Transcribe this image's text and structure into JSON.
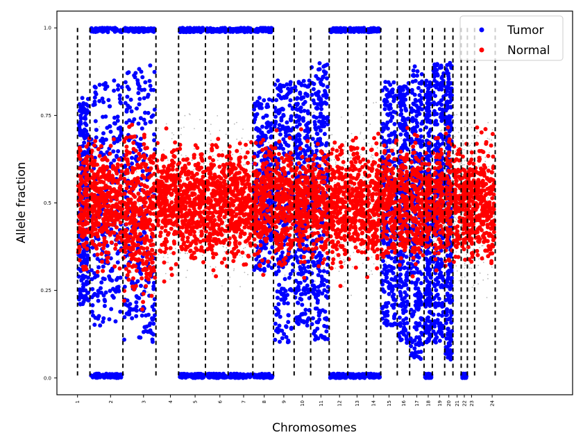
{
  "chart_data": {
    "type": "scatter",
    "title": "",
    "xlabel": "Chromosomes",
    "ylabel": "Allele fraction",
    "xlim": [
      0,
      25
    ],
    "ylim": [
      -0.048,
      1.048
    ],
    "grid": false,
    "legend_position": "top-right",
    "yticks": [
      {
        "value": 0.0,
        "label": "0.0"
      },
      {
        "value": 0.25,
        "label": "0.25"
      },
      {
        "value": 0.5,
        "label": "0.5"
      },
      {
        "value": 0.75,
        "label": "0.75"
      },
      {
        "value": 1.0,
        "label": "1.0"
      }
    ],
    "xticks": [
      {
        "value": 1.0,
        "label": "1"
      },
      {
        "value": 2.6,
        "label": "2"
      },
      {
        "value": 4.2,
        "label": "3"
      },
      {
        "value": 5.5,
        "label": "4"
      },
      {
        "value": 6.7,
        "label": "5"
      },
      {
        "value": 7.9,
        "label": "6"
      },
      {
        "value": 9.05,
        "label": "7"
      },
      {
        "value": 10.05,
        "label": "8"
      },
      {
        "value": 11.0,
        "label": "9"
      },
      {
        "value": 11.9,
        "label": "10"
      },
      {
        "value": 12.8,
        "label": "11"
      },
      {
        "value": 13.7,
        "label": "12"
      },
      {
        "value": 14.55,
        "label": "13"
      },
      {
        "value": 15.35,
        "label": "14"
      },
      {
        "value": 16.1,
        "label": "15"
      },
      {
        "value": 16.8,
        "label": "16"
      },
      {
        "value": 17.45,
        "label": "17"
      },
      {
        "value": 18.0,
        "label": "18"
      },
      {
        "value": 18.55,
        "label": "19"
      },
      {
        "value": 19.0,
        "label": "20"
      },
      {
        "value": 19.4,
        "label": "21"
      },
      {
        "value": 19.75,
        "label": "22"
      },
      {
        "value": 20.1,
        "label": "23"
      },
      {
        "value": 21.1,
        "label": "24"
      }
    ],
    "boundaries": [
      1.0,
      1.6,
      3.2,
      4.8,
      5.9,
      7.2,
      8.3,
      9.5,
      10.5,
      11.5,
      12.3,
      13.2,
      14.1,
      15.0,
      15.7,
      16.5,
      17.1,
      17.8,
      18.2,
      18.8,
      19.2,
      19.6,
      19.9,
      20.25,
      21.25
    ],
    "series": [
      {
        "name": "Tumor",
        "color": "#0000ff"
      },
      {
        "name": "Normal",
        "color": "#ff0000"
      }
    ],
    "background_color": "#999999",
    "regions": [
      {
        "chromosome": "1",
        "x": [
          1.0,
          1.6
        ],
        "tumor_bands": [
          [
            0.2,
            0.8
          ]
        ],
        "normal_range": [
          0.28,
          0.72
        ]
      },
      {
        "chromosome": "2",
        "x": [
          1.6,
          3.2
        ],
        "tumor_bands": [
          [
            0.0,
            0.0
          ],
          [
            1.0,
            1.0
          ],
          [
            0.15,
            0.85
          ]
        ],
        "normal_range": [
          0.3,
          0.7
        ]
      },
      {
        "chromosome": "3",
        "x": [
          3.2,
          4.8
        ],
        "tumor_bands": [
          [
            0.1,
            0.9
          ],
          [
            1.0,
            1.0
          ]
        ],
        "normal_range": [
          0.2,
          0.75
        ]
      },
      {
        "chromosome": "4",
        "x": [
          4.8,
          5.9
        ],
        "tumor_bands": [],
        "normal_range": [
          0.3,
          0.7
        ]
      },
      {
        "chromosome": "5",
        "x": [
          5.9,
          7.2
        ],
        "tumor_bands": [
          [
            0.0,
            0.0
          ],
          [
            1.0,
            1.0
          ]
        ],
        "normal_range": [
          0.3,
          0.7
        ]
      },
      {
        "chromosome": "6",
        "x": [
          7.2,
          8.3
        ],
        "tumor_bands": [
          [
            0.0,
            0.0
          ],
          [
            1.0,
            1.0
          ]
        ],
        "normal_range": [
          0.3,
          0.7
        ]
      },
      {
        "chromosome": "7",
        "x": [
          8.3,
          9.5
        ],
        "tumor_bands": [
          [
            0.0,
            0.0
          ],
          [
            1.0,
            1.0
          ]
        ],
        "normal_range": [
          0.3,
          0.7
        ]
      },
      {
        "chromosome": "8",
        "x": [
          9.5,
          10.5
        ],
        "tumor_bands": [
          [
            0.0,
            0.0
          ],
          [
            1.0,
            1.0
          ],
          [
            0.3,
            0.8
          ]
        ],
        "normal_range": [
          0.3,
          0.7
        ]
      },
      {
        "chromosome": "9",
        "x": [
          10.5,
          11.5
        ],
        "tumor_bands": [
          [
            0.1,
            0.85
          ]
        ],
        "normal_range": [
          0.3,
          0.7
        ]
      },
      {
        "chromosome": "10",
        "x": [
          11.5,
          12.3
        ],
        "tumor_bands": [
          [
            0.15,
            0.85
          ]
        ],
        "normal_range": [
          0.3,
          0.7
        ]
      },
      {
        "chromosome": "11",
        "x": [
          12.3,
          13.2
        ],
        "tumor_bands": [
          [
            0.1,
            0.9
          ]
        ],
        "normal_range": [
          0.3,
          0.7
        ]
      },
      {
        "chromosome": "12",
        "x": [
          13.2,
          14.1
        ],
        "tumor_bands": [
          [
            0.0,
            0.0
          ],
          [
            1.0,
            1.0
          ]
        ],
        "normal_range": [
          0.3,
          0.7
        ]
      },
      {
        "chromosome": "13",
        "x": [
          14.1,
          15.0
        ],
        "tumor_bands": [
          [
            0.0,
            0.0
          ],
          [
            1.0,
            1.0
          ]
        ],
        "normal_range": [
          0.3,
          0.7
        ]
      },
      {
        "chromosome": "14",
        "x": [
          15.0,
          15.7
        ],
        "tumor_bands": [
          [
            0.0,
            0.0
          ],
          [
            1.0,
            1.0
          ]
        ],
        "normal_range": [
          0.3,
          0.7
        ]
      },
      {
        "chromosome": "15",
        "x": [
          15.7,
          16.5
        ],
        "tumor_bands": [
          [
            0.15,
            0.85
          ]
        ],
        "normal_range": [
          0.3,
          0.7
        ]
      },
      {
        "chromosome": "16",
        "x": [
          16.5,
          17.1
        ],
        "tumor_bands": [
          [
            0.1,
            0.85
          ]
        ],
        "normal_range": [
          0.3,
          0.7
        ]
      },
      {
        "chromosome": "17",
        "x": [
          17.1,
          17.8
        ],
        "tumor_bands": [
          [
            0.05,
            0.9
          ]
        ],
        "normal_range": [
          0.3,
          0.7
        ]
      },
      {
        "chromosome": "18",
        "x": [
          17.8,
          18.2
        ],
        "tumor_bands": [
          [
            0.0,
            0.0
          ],
          [
            0.1,
            0.85
          ]
        ],
        "normal_range": [
          0.3,
          0.7
        ]
      },
      {
        "chromosome": "19",
        "x": [
          18.2,
          18.8
        ],
        "tumor_bands": [
          [
            0.1,
            0.9
          ]
        ],
        "normal_range": [
          0.3,
          0.7
        ]
      },
      {
        "chromosome": "20",
        "x": [
          18.8,
          19.2
        ],
        "tumor_bands": [
          [
            0.05,
            0.9
          ]
        ],
        "normal_range": [
          0.3,
          0.7
        ]
      },
      {
        "chromosome": "21",
        "x": [
          19.2,
          19.6
        ],
        "tumor_bands": [],
        "normal_range": [
          0.3,
          0.7
        ]
      },
      {
        "chromosome": "22",
        "x": [
          19.6,
          19.9
        ],
        "tumor_bands": [
          [
            0.0,
            0.0
          ]
        ],
        "normal_range": [
          0.35,
          0.65
        ]
      },
      {
        "chromosome": "23",
        "x": [
          19.9,
          20.25
        ],
        "tumor_bands": [],
        "normal_range": [
          0.3,
          0.7
        ]
      },
      {
        "chromosome": "24",
        "x": [
          20.25,
          21.25
        ],
        "tumor_bands": [],
        "normal_range": [
          0.3,
          0.7
        ]
      }
    ]
  }
}
